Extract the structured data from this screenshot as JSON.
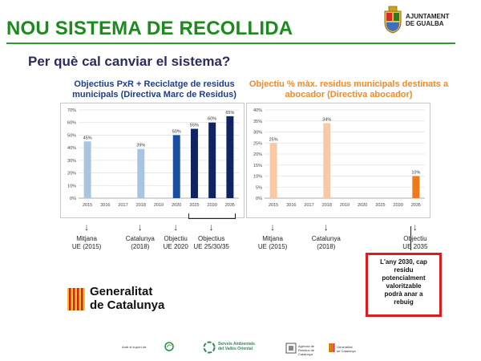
{
  "header": {
    "title": "NOU SISTEMA DE RECOLLIDA",
    "subtitle": "Per què cal canviar el sistema?",
    "logo_text": "AJUNTAMENT\nDE GUALBA",
    "accent": "#1c8a1c"
  },
  "chart_data": [
    {
      "type": "bar",
      "title": "Objectius PxR + Reciclatge de residus municipals (Directiva Marc de Residus)",
      "categories": [
        "2015",
        "2016",
        "2017",
        "2018",
        "2019",
        "2020",
        "2025",
        "2030",
        "2035"
      ],
      "values": [
        45,
        null,
        null,
        39,
        null,
        50,
        55,
        60,
        65
      ],
      "data_labels": [
        "45%",
        "",
        "",
        "39%",
        "",
        "50%",
        "55%",
        "60%",
        "65%"
      ],
      "colors": [
        "#a8c4e0",
        null,
        null,
        "#a8c4e0",
        null,
        "#1a4fa0",
        "#0f2460",
        "#0f2460",
        "#0f2460"
      ],
      "yticks": [
        "0%",
        "10%",
        "20%",
        "30%",
        "40%",
        "50%",
        "60%",
        "70%"
      ],
      "ylim": [
        0,
        70
      ]
    },
    {
      "type": "bar",
      "title": "Objectiu % màx. residus municipals destinats a abocador (Directiva abocador)",
      "categories": [
        "2015",
        "2016",
        "2017",
        "2018",
        "2019",
        "2020",
        "2025",
        "2030",
        "2035"
      ],
      "values": [
        25,
        null,
        null,
        34,
        null,
        null,
        null,
        null,
        10
      ],
      "data_labels": [
        "25%",
        "",
        "",
        "34%",
        "",
        "",
        "",
        "",
        "10%"
      ],
      "colors": [
        "#f9c9a3",
        null,
        null,
        "#f9c9a3",
        null,
        null,
        null,
        null,
        "#ee7a1e"
      ],
      "yticks": [
        "0%",
        "5%",
        "10%",
        "15%",
        "20%",
        "25%",
        "30%",
        "35%",
        "40%"
      ],
      "ylim": [
        0,
        40
      ]
    }
  ],
  "annotations": {
    "left": [
      {
        "label": "Mitjana\nUE (2015)",
        "col": 0
      },
      {
        "label": "Catalunya\n(2018)",
        "col": 3
      },
      {
        "label": "Objectiu\nUE 2020",
        "col": 5
      },
      {
        "label": "Objectius\nUE 25/30/35",
        "col": 7
      }
    ],
    "right": [
      {
        "label": "Mitjana\nUE (2015)",
        "col": 0
      },
      {
        "label": "Catalunya\n(2018)",
        "col": 3
      },
      {
        "label": "Objectiu\nUE 2035",
        "col": 8
      }
    ]
  },
  "callout": {
    "text": "L'any 2030, cap\nresidu\npotencialment\nvaloritzable\npodrà anar a\nrebuig",
    "border_color": "#e01b1b"
  },
  "generalitat": {
    "text": "Generalitat\nde Catalunya"
  },
  "footer": {
    "support_text": "Amb el suport de:",
    "serveis_text": "Serveis Ambientals\ndel Vallès Oriental",
    "agencia_text": "Agència de\nResidus de\nCatalunya",
    "generalitat_small": "Generalitat\nde Catalunya"
  }
}
